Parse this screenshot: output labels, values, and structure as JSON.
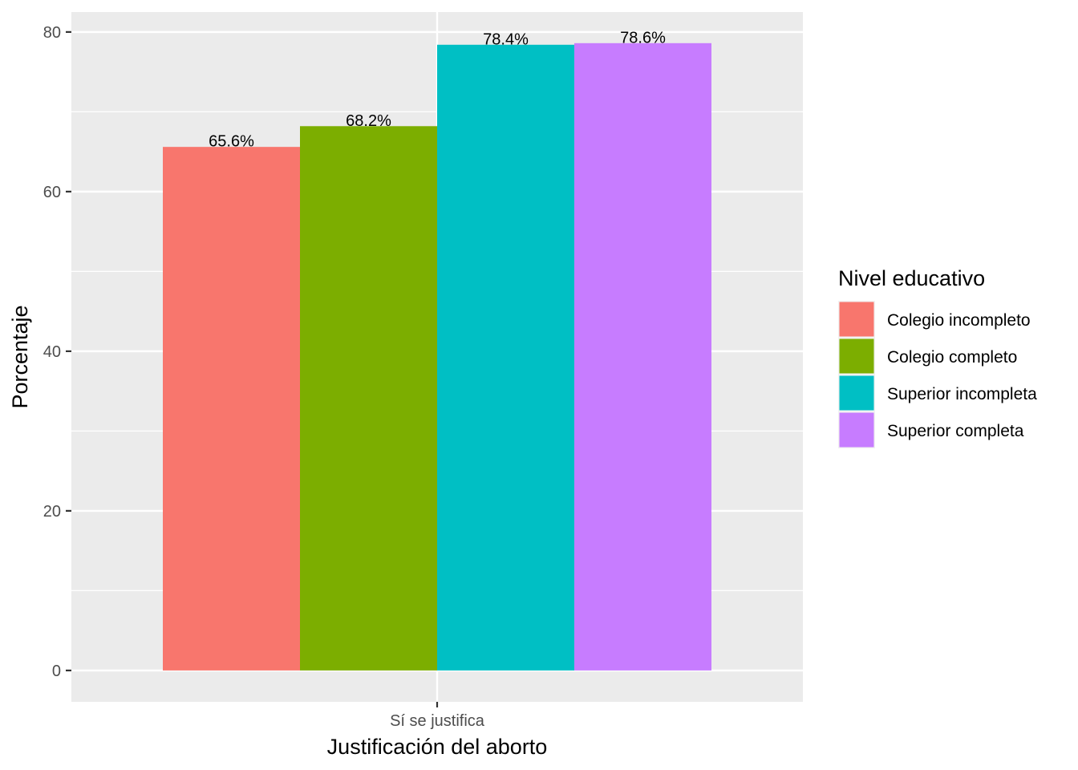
{
  "chart_data": {
    "type": "bar",
    "xlabel": "Justificación del aborto",
    "ylabel": "Porcentaje",
    "categories": [
      "Sí se justifica"
    ],
    "ylim": [
      -3.93,
      82.5
    ],
    "yticks": [
      0,
      20,
      40,
      60,
      80
    ],
    "grid": true,
    "legend": {
      "title": "Nivel educativo",
      "position": "right"
    },
    "series": [
      {
        "name": "Colegio incompleto",
        "values": [
          65.6
        ],
        "label": "65.6%",
        "color": "#F8766D"
      },
      {
        "name": "Colegio completo",
        "values": [
          68.2
        ],
        "label": "68.2%",
        "color": "#7CAE00"
      },
      {
        "name": "Superior incompleta",
        "values": [
          78.4
        ],
        "label": "78.4%",
        "color": "#00BFC4"
      },
      {
        "name": "Superior completa",
        "values": [
          78.6
        ],
        "label": "78.6%",
        "color": "#C77CFF"
      }
    ]
  }
}
